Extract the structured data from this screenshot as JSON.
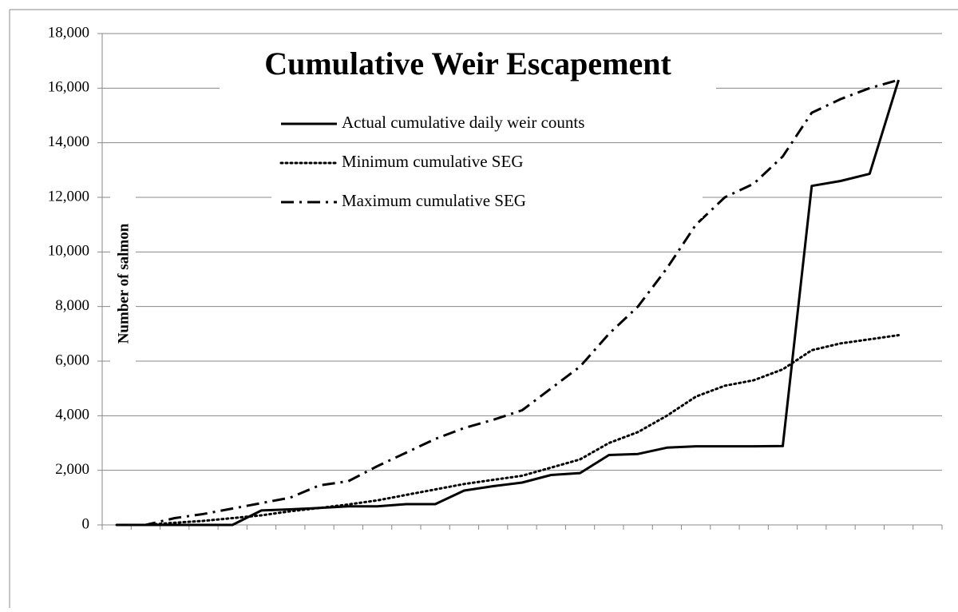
{
  "chart_data": {
    "type": "line",
    "title": "Cumulative Weir Escapement",
    "y_label": "Number of salmon",
    "categories": [
      null,
      null,
      null,
      null,
      null,
      null,
      null,
      null,
      null,
      null,
      null,
      null,
      null,
      null,
      null,
      null,
      null,
      null,
      null,
      null,
      null,
      null,
      null,
      null,
      null,
      null,
      null,
      null,
      null
    ],
    "series": [
      {
        "name": "Actual cumulative daily weir counts",
        "color": "#000000",
        "dash": "solid",
        "values": [
          0,
          0,
          0,
          0,
          0,
          530,
          570,
          620,
          680,
          680,
          760,
          760,
          1260,
          1420,
          1550,
          1830,
          1900,
          2560,
          2600,
          2830,
          2880,
          2880,
          2880,
          2890,
          12420,
          12600,
          12860,
          16300,
          null
        ]
      },
      {
        "name": "Minimum cumulative SEG",
        "color": "#000000",
        "dash": "dotted",
        "values": [
          0,
          0,
          80,
          150,
          250,
          350,
          500,
          620,
          750,
          900,
          1100,
          1300,
          1500,
          1650,
          1800,
          2100,
          2400,
          3000,
          3400,
          4000,
          4700,
          5100,
          5300,
          5700,
          6400,
          6650,
          6800,
          6950,
          null
        ]
      },
      {
        "name": "Maximum cumulative SEG",
        "color": "#000000",
        "dash": "dashdot",
        "values": [
          0,
          0,
          250,
          400,
          600,
          800,
          1000,
          1450,
          1600,
          2150,
          2650,
          3150,
          3550,
          3850,
          4200,
          5000,
          5800,
          7000,
          8000,
          9400,
          11000,
          12000,
          12500,
          13500,
          15100,
          15600,
          16000,
          16300,
          null
        ]
      }
    ],
    "ylim": [
      0,
      18000
    ],
    "yticks": [
      0,
      {
        "value": 2000,
        "label": "2,000"
      },
      {
        "value": 4000,
        "label": "4,000"
      },
      {
        "value": 6000,
        "label": "6,000"
      },
      {
        "value": 8000,
        "label": "8,000"
      },
      {
        "value": 10000,
        "label": "10,000"
      },
      {
        "value": 12000,
        "label": "12,000"
      },
      {
        "value": 14000,
        "label": "14,000"
      },
      {
        "value": 16000,
        "label": "16,000"
      },
      {
        "value": 18000,
        "label": "18,000"
      }
    ],
    "grid": true
  }
}
